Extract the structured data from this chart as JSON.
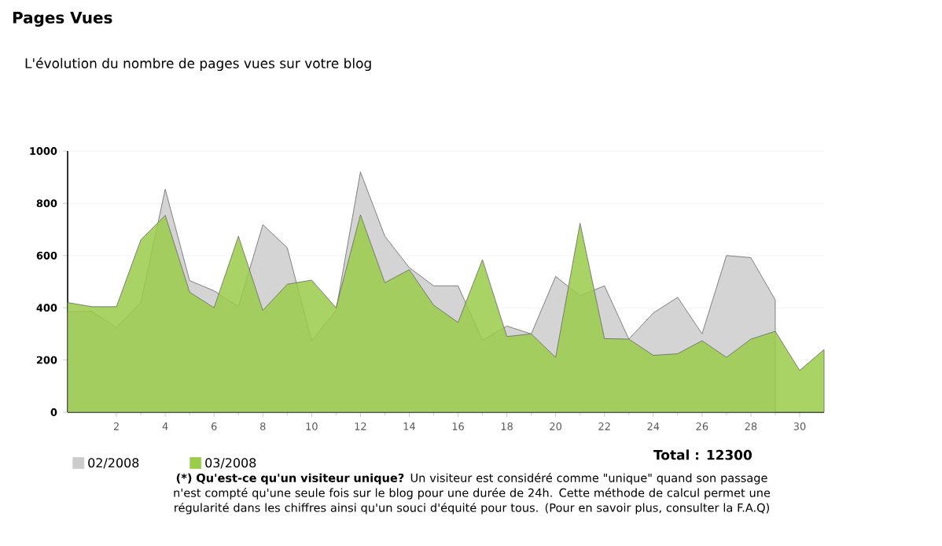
{
  "chart_data": {
    "type": "area",
    "title": "Pages Vues",
    "subtitle": "L'évolution du nombre de pages vues sur votre blog",
    "x": [
      0,
      1,
      2,
      3,
      4,
      5,
      6,
      7,
      8,
      9,
      10,
      11,
      12,
      13,
      14,
      15,
      16,
      17,
      18,
      19,
      20,
      21,
      22,
      23,
      24,
      25,
      26,
      27,
      28,
      29,
      30,
      31
    ],
    "series": [
      {
        "name": "02/2008",
        "color": "#cccccc",
        "x": [
          0,
          1,
          2,
          3,
          4,
          5,
          6,
          7,
          8,
          9,
          10,
          11,
          12,
          13,
          14,
          15,
          16,
          17,
          18,
          19,
          20,
          21,
          22,
          23,
          24,
          25,
          26,
          27,
          28,
          29
        ],
        "values": [
          385,
          386,
          324,
          420,
          854,
          504,
          465,
          404,
          718,
          630,
          274,
          390,
          920,
          674,
          554,
          484,
          484,
          276,
          330,
          300,
          520,
          446,
          484,
          280,
          380,
          440,
          300,
          600,
          592,
          430
        ]
      },
      {
        "name": "03/2008",
        "color": "#9acd4a",
        "values": [
          420,
          404,
          404,
          660,
          754,
          460,
          400,
          674,
          390,
          490,
          506,
          400,
          756,
          496,
          546,
          410,
          344,
          584,
          290,
          300,
          210,
          724,
          282,
          280,
          218,
          224,
          274,
          210,
          280,
          310,
          160,
          240
        ]
      }
    ],
    "xlim": [
      0,
      31
    ],
    "xticks": [
      2,
      4,
      6,
      8,
      10,
      12,
      14,
      16,
      18,
      20,
      22,
      24,
      26,
      28,
      30
    ],
    "ylim": [
      0,
      1000
    ],
    "yticks": [
      0,
      200,
      400,
      600,
      800,
      1000
    ],
    "grid": "y",
    "legend": "bottom left",
    "annotations": [
      "Total : 12300",
      "**(*) Qu'est-ce qu'un visiteur unique?** Un visiteur est considéré comme \"unique\" quand son passage n'est compté qu'une seule fois sur le blog pour une durée de 24h. Cette méthode de calcul permet une régularité dans les chiffres ainsi qu'un souci d'équité pour tous. (Pour en savoir plus, consulter la F.A.Q)"
    ]
  }
}
